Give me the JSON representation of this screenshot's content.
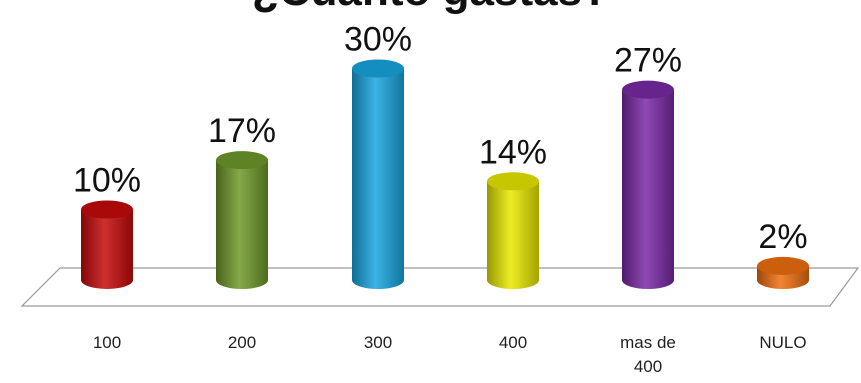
{
  "chart_data": {
    "type": "bar",
    "title": "¿Cuánto gastas?",
    "categories": [
      "100",
      "200",
      "300",
      "400",
      "mas de 400",
      "NULO"
    ],
    "values": [
      10,
      17,
      30,
      14,
      27,
      2
    ],
    "value_suffix": "%",
    "ylim": [
      0,
      30
    ],
    "grid": false,
    "legend": "none",
    "bar_colors": [
      "#c80a0a",
      "#6f9a2a",
      "#18a7e0",
      "#eaea00",
      "#7a2aa6",
      "#f07010"
    ]
  }
}
